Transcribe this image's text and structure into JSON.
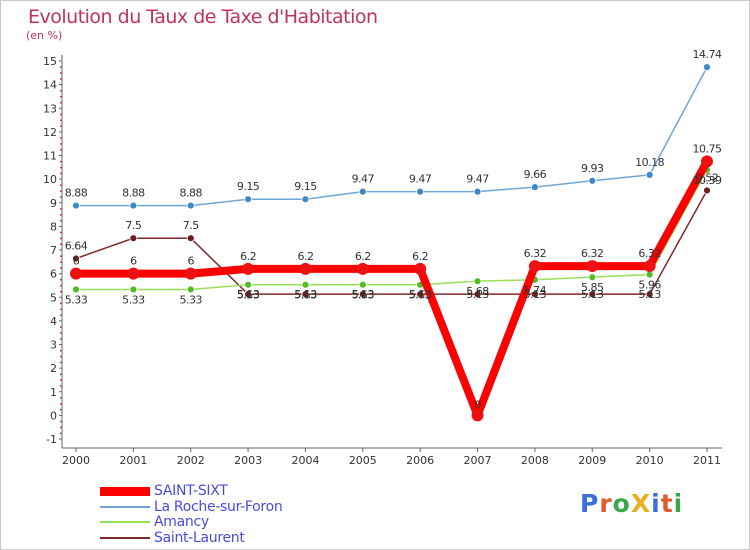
{
  "header": {
    "title": "Evolution du Taux de Taxe d'Habitation",
    "subtitle": "(en %)"
  },
  "logo": {
    "text": "ProXiti",
    "letter_colors": [
      "#3a6fd8",
      "#e05a2b",
      "#3aa64a",
      "#e8b020",
      "#3a6fd8",
      "#e05a2b",
      "#3aa64a"
    ]
  },
  "chart_data": {
    "type": "line",
    "title": "Evolution du Taux de Taxe d'Habitation",
    "ylabel": "(en %)",
    "x": [
      "2000",
      "2001",
      "2002",
      "2003",
      "2004",
      "2005",
      "2006",
      "2007",
      "2008",
      "2009",
      "2010",
      "2011"
    ],
    "ylim": [
      -1,
      15
    ],
    "yticks": [
      "-1",
      "0",
      "1",
      "2",
      "3",
      "4",
      "5",
      "6",
      "7",
      "8",
      "9",
      "10",
      "11",
      "12",
      "13",
      "14",
      "15"
    ],
    "grid": false,
    "legend_position": "bottom-left",
    "series": [
      {
        "name": "SAINT-SIXT",
        "color": "#ff0000",
        "values": [
          6,
          6,
          6,
          6.2,
          6.2,
          6.2,
          6.2,
          0,
          6.32,
          6.32,
          6.32,
          10.75
        ],
        "labels": [
          "6",
          "6",
          "6",
          "6.2",
          "6.2",
          "6.2",
          "6.2",
          "0",
          "6.32",
          "6.32",
          "6.32",
          "10.75"
        ]
      },
      {
        "name": "La Roche-sur-Foron",
        "color": "#6ea6d6",
        "values": [
          8.88,
          8.88,
          8.88,
          9.15,
          9.15,
          9.47,
          9.47,
          9.47,
          9.66,
          9.93,
          10.18,
          14.74
        ],
        "labels": [
          "8.88",
          "8.88",
          "8.88",
          "9.15",
          "9.15",
          "9.47",
          "9.47",
          "9.47",
          "9.66",
          "9.93",
          "10.18",
          "14.74"
        ]
      },
      {
        "name": "Amancy",
        "color": "#99e05a",
        "values": [
          5.33,
          5.33,
          5.33,
          5.53,
          5.53,
          5.53,
          5.53,
          5.68,
          5.74,
          5.85,
          5.96,
          10.39
        ],
        "labels": [
          "5.33",
          "5.33",
          "5.33",
          "5.53",
          "5.53",
          "5.53",
          "5.53",
          "5.68",
          "5.74",
          "5.85",
          "5.96",
          "10.39"
        ]
      },
      {
        "name": "Saint-Laurent",
        "color": "#7f2a2a",
        "values": [
          6.64,
          7.5,
          7.5,
          5.13,
          5.13,
          5.13,
          5.13,
          5.13,
          5.13,
          5.13,
          5.13,
          9.52
        ],
        "labels": [
          "6.64",
          "7.5",
          "7.5",
          "5.13",
          "5.13",
          "5.13",
          "5.13",
          "5.13",
          "5.13",
          "5.13",
          "5.13",
          "9.52"
        ]
      }
    ]
  }
}
